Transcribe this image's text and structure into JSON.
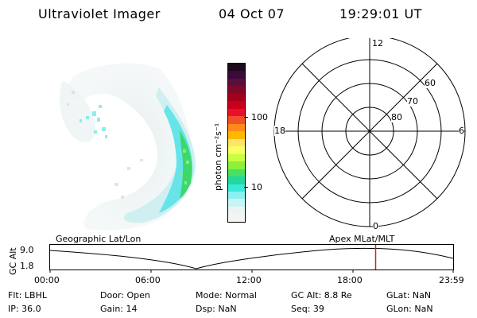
{
  "header": {
    "title": "Ultraviolet Imager",
    "date": "04 Oct 07",
    "time": "19:29:01 UT"
  },
  "colorbar": {
    "unit_label": "photon cm⁻²s⁻¹",
    "ticks": [
      "100",
      "10"
    ],
    "colors": [
      "#1a0a1a",
      "#3b0a3b",
      "#5a0f3a",
      "#7d0a28",
      "#a3001e",
      "#c8001c",
      "#e8102a",
      "#f0502a",
      "#ff8a1a",
      "#ffb800",
      "#ffe46a",
      "#f8ff60",
      "#c8ff40",
      "#8cf03c",
      "#4ae060",
      "#20d8a0",
      "#3ce8d8",
      "#8af0f0",
      "#c8f4f4",
      "#eaf4f4",
      "#f4f4f4"
    ]
  },
  "polar": {
    "labels": {
      "top": "12",
      "left": "18",
      "right": "6",
      "bottom": "0"
    },
    "rings": [
      "60",
      "70",
      "80"
    ]
  },
  "ephem": {
    "geo_label": "Geographic Lat/Lon",
    "apex_label": "Apex  MLat/MLT",
    "axis_label": "GC Alt",
    "y_ticks": [
      "9.0",
      "1.8"
    ],
    "x_ticks": [
      "00:00",
      "06:00",
      "12:00",
      "18:00",
      "23:59"
    ],
    "current_marker_color": "#d42020"
  },
  "status": {
    "flt": "Flt: LBHL",
    "ip": "IP: 36.0",
    "door": "Door: Open",
    "gain": "Gain: 14",
    "mode": "Mode: Normal",
    "dsp": "Dsp:      NaN",
    "gcalt": "GC Alt: 8.8 Re",
    "seq": "Seq: 39",
    "glat": "GLat:       NaN",
    "glon": "GLon:      NaN"
  }
}
